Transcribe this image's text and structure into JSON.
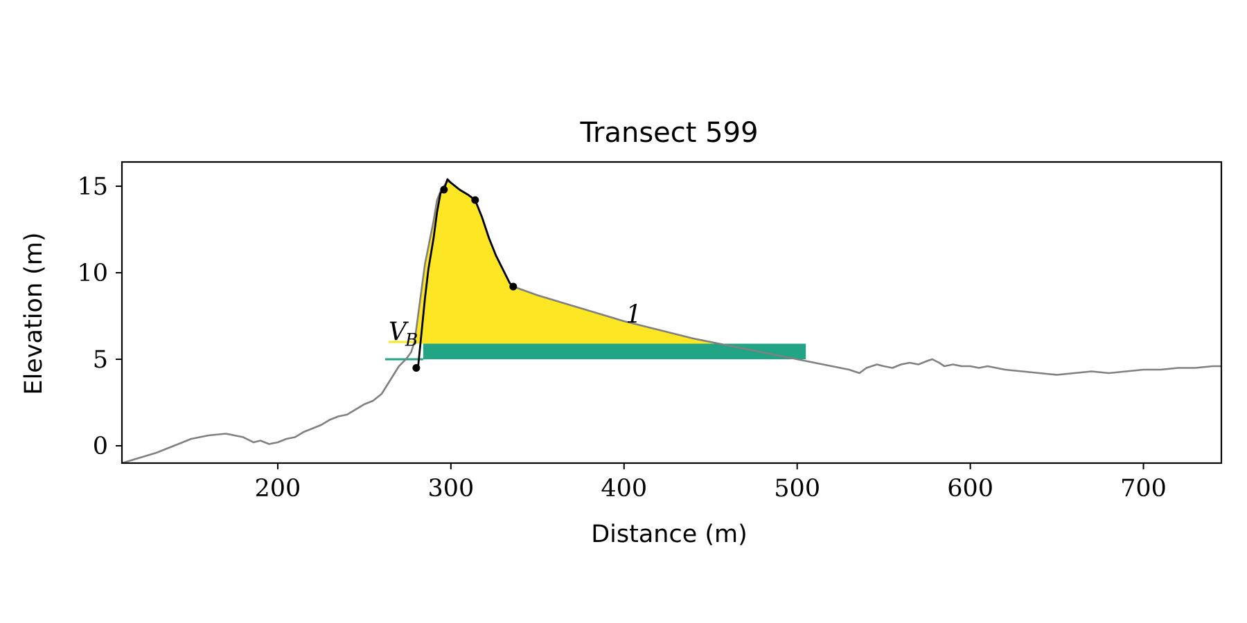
{
  "chart_data": {
    "type": "line",
    "title": "Transect 599",
    "xlabel": "Distance (m)",
    "ylabel": "Elevation (m)",
    "xlim": [
      110,
      745
    ],
    "ylim": [
      -1.0,
      16.4
    ],
    "xticks": [
      200,
      300,
      400,
      500,
      600,
      700
    ],
    "yticks": [
      0,
      5,
      10,
      15
    ],
    "grid": false,
    "legend": "none",
    "colors": {
      "profile": "#808080",
      "dune": "#000000",
      "dune_volume": "#fde725",
      "base_volume": "#21a585"
    },
    "series": [
      {
        "role": "profile",
        "x": [
          110,
          120,
          130,
          140,
          150,
          160,
          170,
          180,
          186,
          190,
          195,
          200,
          205,
          210,
          215,
          220,
          225,
          230,
          235,
          240,
          245,
          250,
          255,
          260,
          265,
          270,
          274,
          277,
          279,
          281,
          283,
          285,
          287,
          290,
          292,
          294,
          296,
          298,
          300,
          305,
          310,
          314,
          318,
          322,
          326,
          330,
          334,
          336,
          350,
          360,
          380,
          400,
          420,
          440,
          460,
          480,
          500,
          510,
          520,
          530,
          536,
          540,
          543,
          546,
          550,
          555,
          560,
          565,
          570,
          575,
          578,
          582,
          585,
          590,
          595,
          600,
          605,
          610,
          620,
          630,
          640,
          650,
          660,
          670,
          680,
          690,
          700,
          710,
          720,
          730,
          740,
          745
        ],
        "y": [
          -1.0,
          -0.7,
          -0.4,
          0.0,
          0.4,
          0.6,
          0.7,
          0.5,
          0.2,
          0.3,
          0.1,
          0.2,
          0.4,
          0.5,
          0.8,
          1.0,
          1.2,
          1.5,
          1.7,
          1.8,
          2.1,
          2.4,
          2.6,
          3.0,
          3.8,
          4.6,
          5.0,
          5.4,
          6.0,
          7.5,
          9.0,
          10.5,
          11.5,
          13.0,
          14.2,
          14.7,
          15.0,
          15.3,
          15.2,
          14.8,
          14.5,
          14.2,
          13.2,
          12.0,
          11.0,
          10.2,
          9.4,
          9.2,
          8.7,
          8.4,
          7.8,
          7.2,
          6.7,
          6.2,
          5.8,
          5.4,
          5.0,
          4.8,
          4.6,
          4.4,
          4.2,
          4.5,
          4.6,
          4.7,
          4.6,
          4.5,
          4.7,
          4.8,
          4.7,
          4.9,
          5.0,
          4.8,
          4.6,
          4.7,
          4.6,
          4.6,
          4.5,
          4.6,
          4.4,
          4.3,
          4.2,
          4.1,
          4.2,
          4.3,
          4.2,
          4.3,
          4.4,
          4.4,
          4.5,
          4.5,
          4.6,
          4.6
        ]
      },
      {
        "role": "dune",
        "x": [
          281,
          283,
          285,
          287,
          290,
          292,
          294,
          296,
          298,
          300,
          305,
          310,
          314,
          318,
          322,
          326,
          330,
          334,
          336
        ],
        "y": [
          4.5,
          6.5,
          8.5,
          10.2,
          12.0,
          13.5,
          14.6,
          14.8,
          15.4,
          15.2,
          14.8,
          14.5,
          14.2,
          13.2,
          12.0,
          11.0,
          10.2,
          9.4,
          9.2
        ]
      }
    ],
    "markers": [
      {
        "x": 280,
        "y": 4.5
      },
      {
        "x": 296,
        "y": 14.8
      },
      {
        "x": 314,
        "y": 14.2
      },
      {
        "x": 336,
        "y": 9.2
      }
    ],
    "fills": [
      {
        "role": "dune_volume",
        "from_y": 5.9
      },
      {
        "role": "base_volume",
        "from_y": 5.0,
        "to_y": 5.9,
        "x_start": 284,
        "x_end": 505
      }
    ],
    "level_lines": [
      {
        "role": "dune_volume",
        "y": 6.0,
        "x_start": 264,
        "x_end": 284
      },
      {
        "role": "base_volume",
        "y": 5.0,
        "x_start": 262,
        "x_end": 284
      }
    ],
    "annotations": [
      {
        "text": "V",
        "subscript": "B",
        "x": 264,
        "y": 6.1
      },
      {
        "text": "1",
        "subscript": "",
        "x": 401,
        "y": 7.1
      }
    ]
  }
}
